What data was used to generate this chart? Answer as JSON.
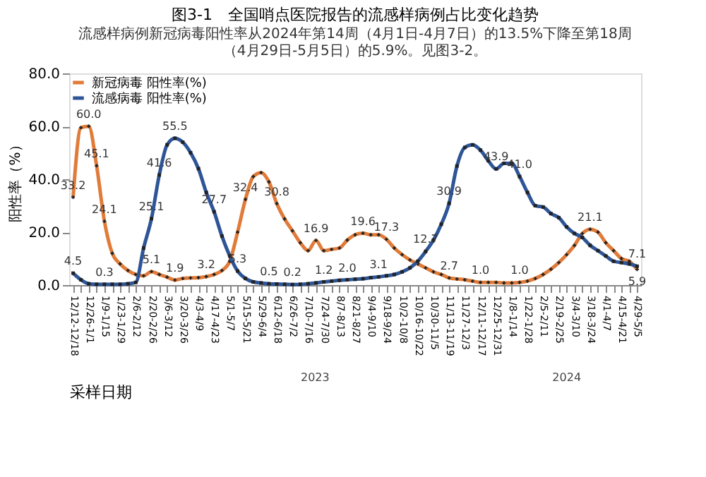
{
  "chart_data": {
    "type": "line",
    "title": "图3-1　全国哨点医院报告的流感样病例占比变化趋势",
    "subtitle": "流感样病例新冠病毒阳性率从2024年第14周（4月1日-4月7日）的13.5%下降至第18周（4月29日-5月5日）的5.9%。见图3-2。",
    "xlabel": "采样日期",
    "ylabel": "阳性率（%）",
    "categories": [
      "12/12-12/18",
      null,
      "12/26-1/1",
      null,
      "1/9-1/15",
      null,
      "1/23-1/29",
      null,
      "2/6-2/12",
      null,
      "2/20-2/26",
      null,
      "3/6-3/12",
      null,
      "3/20-3/26",
      null,
      "4/3-4/9",
      null,
      "4/17-4/23",
      null,
      "5/1-5/7",
      null,
      "5/15-5/21",
      null,
      "5/29-6/4",
      null,
      "6/12-6/18",
      null,
      "6/26-7/2",
      null,
      "7/10-7/16",
      null,
      "7/24-7/30",
      null,
      "8/7-8/13",
      null,
      "8/21-8/27",
      null,
      "9/4-9/10",
      null,
      "9/18-9/24",
      null,
      "10/2-10/8",
      null,
      "10/16-10/22",
      null,
      "10/30-11/5",
      null,
      "11/13-11/19",
      null,
      "11/27-12/3",
      null,
      "12/11-12/17",
      null,
      "12/25-12/31",
      null,
      "1/8-1/14",
      null,
      "1/22-1/28",
      null,
      "2/5-2/11",
      null,
      "2/19-2/25",
      null,
      "3/4-3/10",
      null,
      "3/18-3/24",
      null,
      "4/1-4/7",
      null,
      "4/15-4/21",
      null,
      "4/29-5/5"
    ],
    "series": [
      {
        "name": "新冠病毒 阳性率(%)",
        "color": "#e07b39",
        "marker": "cross",
        "values": [
          33.2,
          59.5,
          60.0,
          45.1,
          24.1,
          12,
          8,
          5.5,
          4,
          3.5,
          5.1,
          4,
          3,
          1.9,
          2.5,
          2.7,
          2.8,
          3.2,
          4,
          5.5,
          9,
          20,
          32.4,
          41,
          42.5,
          39,
          30.8,
          25,
          20.5,
          16,
          13,
          16.9,
          13,
          13.5,
          14,
          17,
          19,
          19.6,
          19,
          19,
          17.3,
          14,
          11.5,
          9.5,
          8,
          6.5,
          5,
          4,
          2.7,
          2.3,
          2,
          1.5,
          1.0,
          1,
          1,
          0.8,
          0.8,
          1.0,
          1.5,
          2.5,
          4,
          6,
          8.5,
          11.5,
          15,
          19.5,
          21.1,
          20,
          16,
          13,
          10,
          9,
          5.9
        ],
        "value_labels": [
          "33.2",
          null,
          "60.0",
          "45.1",
          "24.1",
          null,
          null,
          null,
          null,
          null,
          "5.1",
          null,
          null,
          "1.9",
          null,
          null,
          null,
          "3.2",
          null,
          null,
          null,
          null,
          "32.4",
          null,
          null,
          null,
          "30.8",
          null,
          null,
          null,
          null,
          "16.9",
          null,
          null,
          null,
          null,
          null,
          "19.6",
          null,
          null,
          "17.3",
          null,
          null,
          null,
          null,
          null,
          null,
          null,
          "2.7",
          null,
          null,
          null,
          "1.0",
          null,
          null,
          null,
          null,
          "1.0",
          null,
          null,
          null,
          null,
          null,
          null,
          null,
          null,
          "21.1",
          null,
          null,
          null,
          null,
          null,
          "5.9"
        ]
      },
      {
        "name": "流感病毒 阳性率(%)",
        "color": "#2e5597",
        "marker": "square",
        "values": [
          4.5,
          2,
          0.5,
          0.3,
          0.3,
          0.3,
          0.3,
          0.5,
          1,
          14,
          25.1,
          41.6,
          53,
          55.5,
          54,
          50,
          44,
          35,
          27.7,
          18.5,
          11,
          5.3,
          2.5,
          1.2,
          0.8,
          0.5,
          0.4,
          0.3,
          0.2,
          0.3,
          0.5,
          0.8,
          1.2,
          1.5,
          1.8,
          2.0,
          2.2,
          2.4,
          2.8,
          3.1,
          3.5,
          4,
          5,
          6.5,
          9,
          12.7,
          17,
          23,
          30.9,
          45,
          52,
          53,
          51,
          47,
          43.9,
          46,
          46,
          41.0,
          35,
          30,
          29.5,
          27,
          25.5,
          22,
          19.5,
          18,
          15,
          13,
          11,
          9,
          8.5,
          8,
          7.1
        ],
        "value_labels": [
          "4.5",
          null,
          null,
          null,
          "0.3",
          null,
          null,
          null,
          null,
          null,
          "25.1",
          "41.6",
          null,
          "55.5",
          null,
          null,
          null,
          null,
          "27.7",
          null,
          null,
          "5.3",
          null,
          null,
          null,
          "0.5",
          null,
          null,
          "0.2",
          null,
          null,
          null,
          "1.2",
          null,
          null,
          "2.0",
          null,
          null,
          null,
          "3.1",
          null,
          null,
          null,
          null,
          null,
          "12.7",
          null,
          null,
          "30.9",
          null,
          null,
          null,
          null,
          null,
          "43.9",
          null,
          null,
          "41.0",
          null,
          null,
          null,
          null,
          null,
          null,
          null,
          null,
          null,
          null,
          null,
          null,
          null,
          null,
          "7.1"
        ]
      }
    ],
    "ylim": [
      0,
      80
    ],
    "yticks": [
      {
        "value": 0,
        "label": "0.0"
      },
      {
        "value": 20,
        "label": "20.0"
      },
      {
        "value": 40,
        "label": "40.0"
      },
      {
        "value": 60,
        "label": "60.0"
      },
      {
        "value": 80,
        "label": "80.0"
      }
    ],
    "annotations": [
      "2023",
      "2024"
    ],
    "legend": "top left",
    "grid": false
  }
}
